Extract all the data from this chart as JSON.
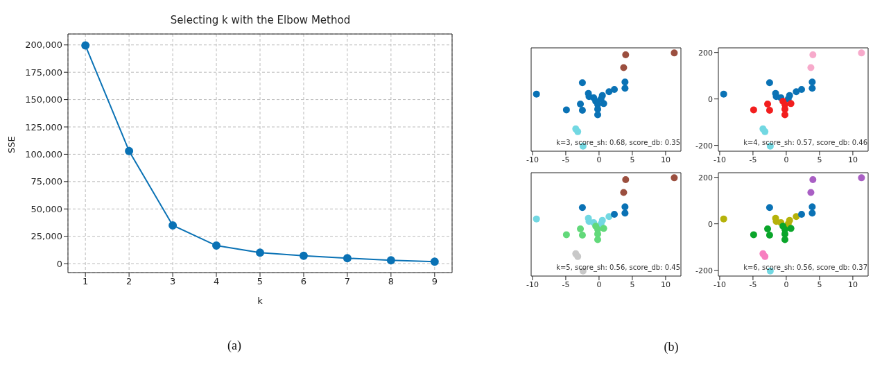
{
  "chart_data": [
    {
      "type": "line",
      "title": "Selecting k with the Elbow Method",
      "xlabel": "k",
      "ylabel": "SSE",
      "x": [
        1,
        2,
        3,
        4,
        5,
        6,
        7,
        8,
        9
      ],
      "values": [
        199500,
        103000,
        35000,
        16500,
        10000,
        7200,
        5000,
        3000,
        1800
      ],
      "color": "#0a72b5",
      "xlim": [
        0.6,
        9.4
      ],
      "xticks": [
        1,
        2,
        3,
        4,
        5,
        6,
        7,
        8,
        9
      ],
      "ylim": [
        -8200,
        210000
      ],
      "yticks": [
        {
          "value": 0,
          "label": "0"
        },
        {
          "value": 25000,
          "label": "25,000"
        },
        {
          "value": 50000,
          "label": "50,000"
        },
        {
          "value": 75000,
          "label": "75,000"
        },
        {
          "value": 100000,
          "label": "100,000"
        },
        {
          "value": 125000,
          "label": "125,000"
        },
        {
          "value": 150000,
          "label": "150,000"
        },
        {
          "value": 175000,
          "label": "175,000"
        },
        {
          "value": 200000,
          "label": "200,000"
        }
      ],
      "grid": true,
      "marker": "circle",
      "line_style": "solid",
      "annotations": [
        "(a)"
      ]
    },
    {
      "type": "scatter",
      "xlim": [
        -10.2,
        12.3
      ],
      "ylim": [
        -225,
        220
      ],
      "xticks": [
        -10,
        -5,
        0,
        5,
        10
      ],
      "yticks": [
        -200,
        0,
        200
      ],
      "tick_labels": "x",
      "annotations": [
        "k=3, score_sh: 0.68, score_db: 0.35"
      ],
      "series": [
        {
          "color": "#0a72b5",
          "x": [
            -9.4,
            -2.5,
            -4.9,
            -2.8,
            -2.5,
            -1.6,
            -1.5,
            -0.8,
            -0.5,
            -0.2,
            -0.2,
            -0.2,
            0.5,
            0.7,
            0.3,
            1.5,
            2.3,
            3.9,
            3.9
          ],
          "values": [
            21,
            70,
            -47,
            -22,
            -49,
            24,
            10,
            5,
            -10,
            -24,
            -44,
            -68,
            15,
            -20,
            0,
            31,
            41,
            73,
            46
          ]
        },
        {
          "color": "#9b4f3f",
          "x": [
            4.0,
            3.7,
            11.3
          ],
          "values": [
            190,
            135,
            198
          ]
        },
        {
          "color": "#72d8e2",
          "x": [
            -3.5,
            -3.2,
            -2.4
          ],
          "values": [
            -129,
            -141,
            -203
          ]
        }
      ]
    },
    {
      "type": "scatter",
      "xlim": [
        -10.2,
        12.3
      ],
      "ylim": [
        -225,
        220
      ],
      "xticks": [
        -10,
        -5,
        0,
        5,
        10
      ],
      "yticks": [
        -200,
        0,
        200
      ],
      "annotations": [
        "k=4, score_sh: 0.57, score_db: 0.46"
      ],
      "series": [
        {
          "color": "#0a72b5",
          "x": [
            -9.4,
            -2.5,
            -1.6,
            -1.5,
            -0.8,
            0.3,
            0.5,
            1.5,
            2.3,
            3.9,
            3.9
          ],
          "values": [
            21,
            70,
            24,
            10,
            5,
            0,
            15,
            31,
            41,
            73,
            46
          ]
        },
        {
          "color": "#f21e1e",
          "x": [
            -4.9,
            -2.8,
            -2.5,
            -0.5,
            -0.2,
            -0.2,
            -0.2,
            0.7
          ],
          "values": [
            -47,
            -22,
            -49,
            -10,
            -24,
            -44,
            -68,
            -20
          ]
        },
        {
          "color": "#f7aacb",
          "x": [
            4.0,
            3.7,
            11.3
          ],
          "values": [
            190,
            135,
            198
          ]
        },
        {
          "color": "#72d8e2",
          "x": [
            -3.5,
            -3.2,
            -2.4
          ],
          "values": [
            -129,
            -141,
            -203
          ]
        }
      ]
    },
    {
      "type": "scatter",
      "xlim": [
        -10.2,
        12.3
      ],
      "ylim": [
        -225,
        220
      ],
      "xticks": [
        -10,
        -5,
        0,
        5,
        10
      ],
      "yticks": [
        -200,
        0,
        200
      ],
      "tick_labels": "x",
      "annotations": [
        "k=5, score_sh: 0.56, score_db: 0.45"
      ],
      "series": [
        {
          "color": "#72d8e2",
          "x": [
            -9.4,
            -1.6,
            -1.5,
            -0.8,
            0.3,
            0.5,
            1.5
          ],
          "values": [
            21,
            24,
            10,
            5,
            0,
            15,
            31
          ]
        },
        {
          "color": "#0a72b5",
          "x": [
            -2.5,
            2.3,
            3.9,
            3.9
          ],
          "values": [
            70,
            41,
            73,
            46
          ]
        },
        {
          "color": "#62d97a",
          "x": [
            -4.9,
            -2.8,
            -2.5,
            -0.5,
            -0.2,
            -0.2,
            -0.2,
            0.7
          ],
          "values": [
            -47,
            -22,
            -49,
            -10,
            -24,
            -44,
            -68,
            -20
          ]
        },
        {
          "color": "#9b4f3f",
          "x": [
            4.0,
            3.7,
            11.3
          ],
          "values": [
            190,
            135,
            198
          ]
        },
        {
          "color": "#c8c8c8",
          "x": [
            -3.5,
            -3.2,
            -2.4
          ],
          "values": [
            -129,
            -141,
            -203
          ]
        }
      ]
    },
    {
      "type": "scatter",
      "xlim": [
        -10.2,
        12.3
      ],
      "ylim": [
        -225,
        220
      ],
      "xticks": [
        -10,
        -5,
        0,
        5,
        10
      ],
      "yticks": [
        -200,
        0,
        200
      ],
      "annotations": [
        "k=6, score_sh: 0.56, score_db: 0.37",
        "(b)"
      ],
      "series": [
        {
          "color": "#b5b20a",
          "x": [
            -9.4,
            -1.6,
            -1.5,
            -0.8,
            0.3,
            0.5,
            1.5
          ],
          "values": [
            21,
            24,
            10,
            5,
            0,
            15,
            31
          ]
        },
        {
          "color": "#0a72b5",
          "x": [
            -2.5,
            2.3,
            3.9,
            3.9
          ],
          "values": [
            70,
            41,
            73,
            46
          ]
        },
        {
          "color": "#0aa52a",
          "x": [
            -4.9,
            -2.8,
            -2.5,
            -0.5,
            -0.2,
            -0.2,
            -0.2,
            0.7
          ],
          "values": [
            -47,
            -22,
            -49,
            -10,
            -24,
            -44,
            -68,
            -20
          ]
        },
        {
          "color": "#a95fc4",
          "x": [
            4.0,
            3.7,
            11.3
          ],
          "values": [
            190,
            135,
            198
          ]
        },
        {
          "color": "#f77fc0",
          "x": [
            -3.5,
            -3.2
          ],
          "values": [
            -129,
            -141
          ]
        },
        {
          "color": "#72d8e2",
          "x": [
            -2.4
          ],
          "values": [
            -203
          ]
        }
      ]
    }
  ]
}
